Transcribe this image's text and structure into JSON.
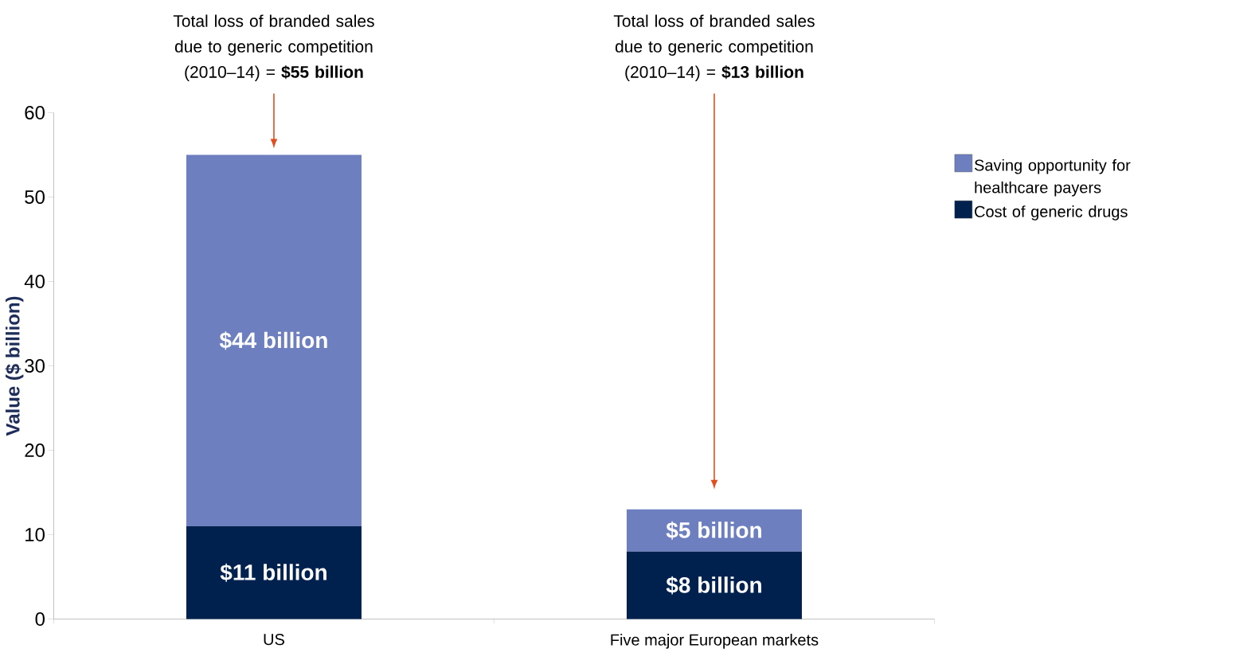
{
  "chart_data": {
    "type": "bar",
    "stacked": true,
    "ylabel": "Value ($ billion)",
    "categories": [
      "US",
      "Five major European markets"
    ],
    "series": [
      {
        "name": "Cost of generic drugs",
        "color": "#00204e",
        "values": [
          11,
          8
        ],
        "value_labels": [
          "$11 billion",
          "$8 billion"
        ]
      },
      {
        "name": "Saving opportunity for healthcare payers",
        "color": "#6d7fbf",
        "values": [
          44,
          5
        ],
        "value_labels": [
          "$44 billion",
          "$5 billion"
        ]
      }
    ],
    "ylim": [
      0,
      60
    ],
    "yticks": [
      0,
      10,
      20,
      30,
      40,
      50,
      60
    ],
    "legend": "right",
    "annotations": [
      "Total loss of branded sales due to generic competition (2010–14) = **$55 billion**",
      "Total loss of branded sales due to generic competition (2010–14) = **$13 billion**"
    ]
  }
}
